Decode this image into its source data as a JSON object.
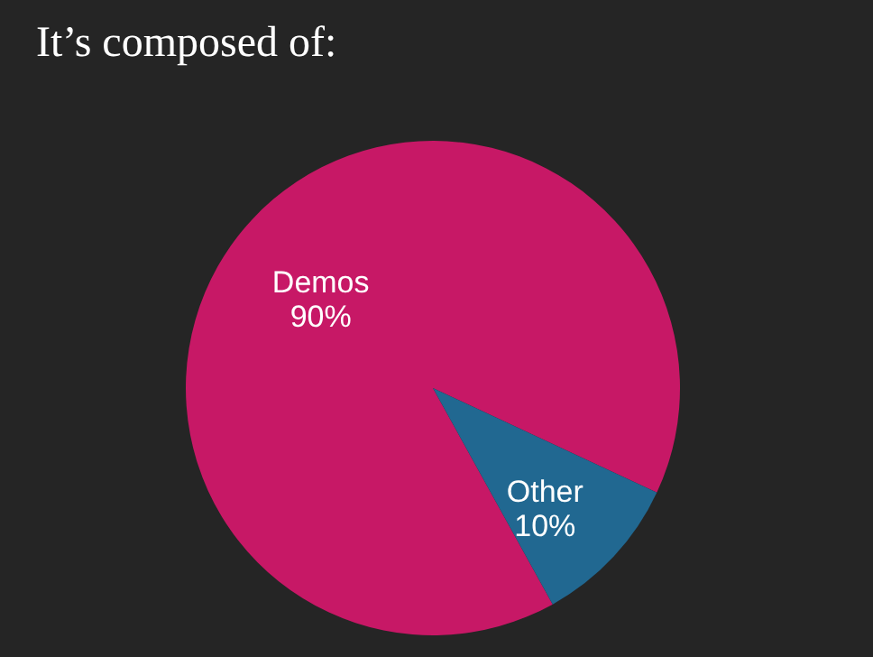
{
  "chart_data": {
    "type": "pie",
    "title": "It’s composed of:",
    "categories": [
      "Demos",
      "Other"
    ],
    "values": [
      90,
      10
    ],
    "colors": [
      "#c71866",
      "#216891"
    ],
    "value_labels": [
      "90%",
      "10%"
    ]
  }
}
